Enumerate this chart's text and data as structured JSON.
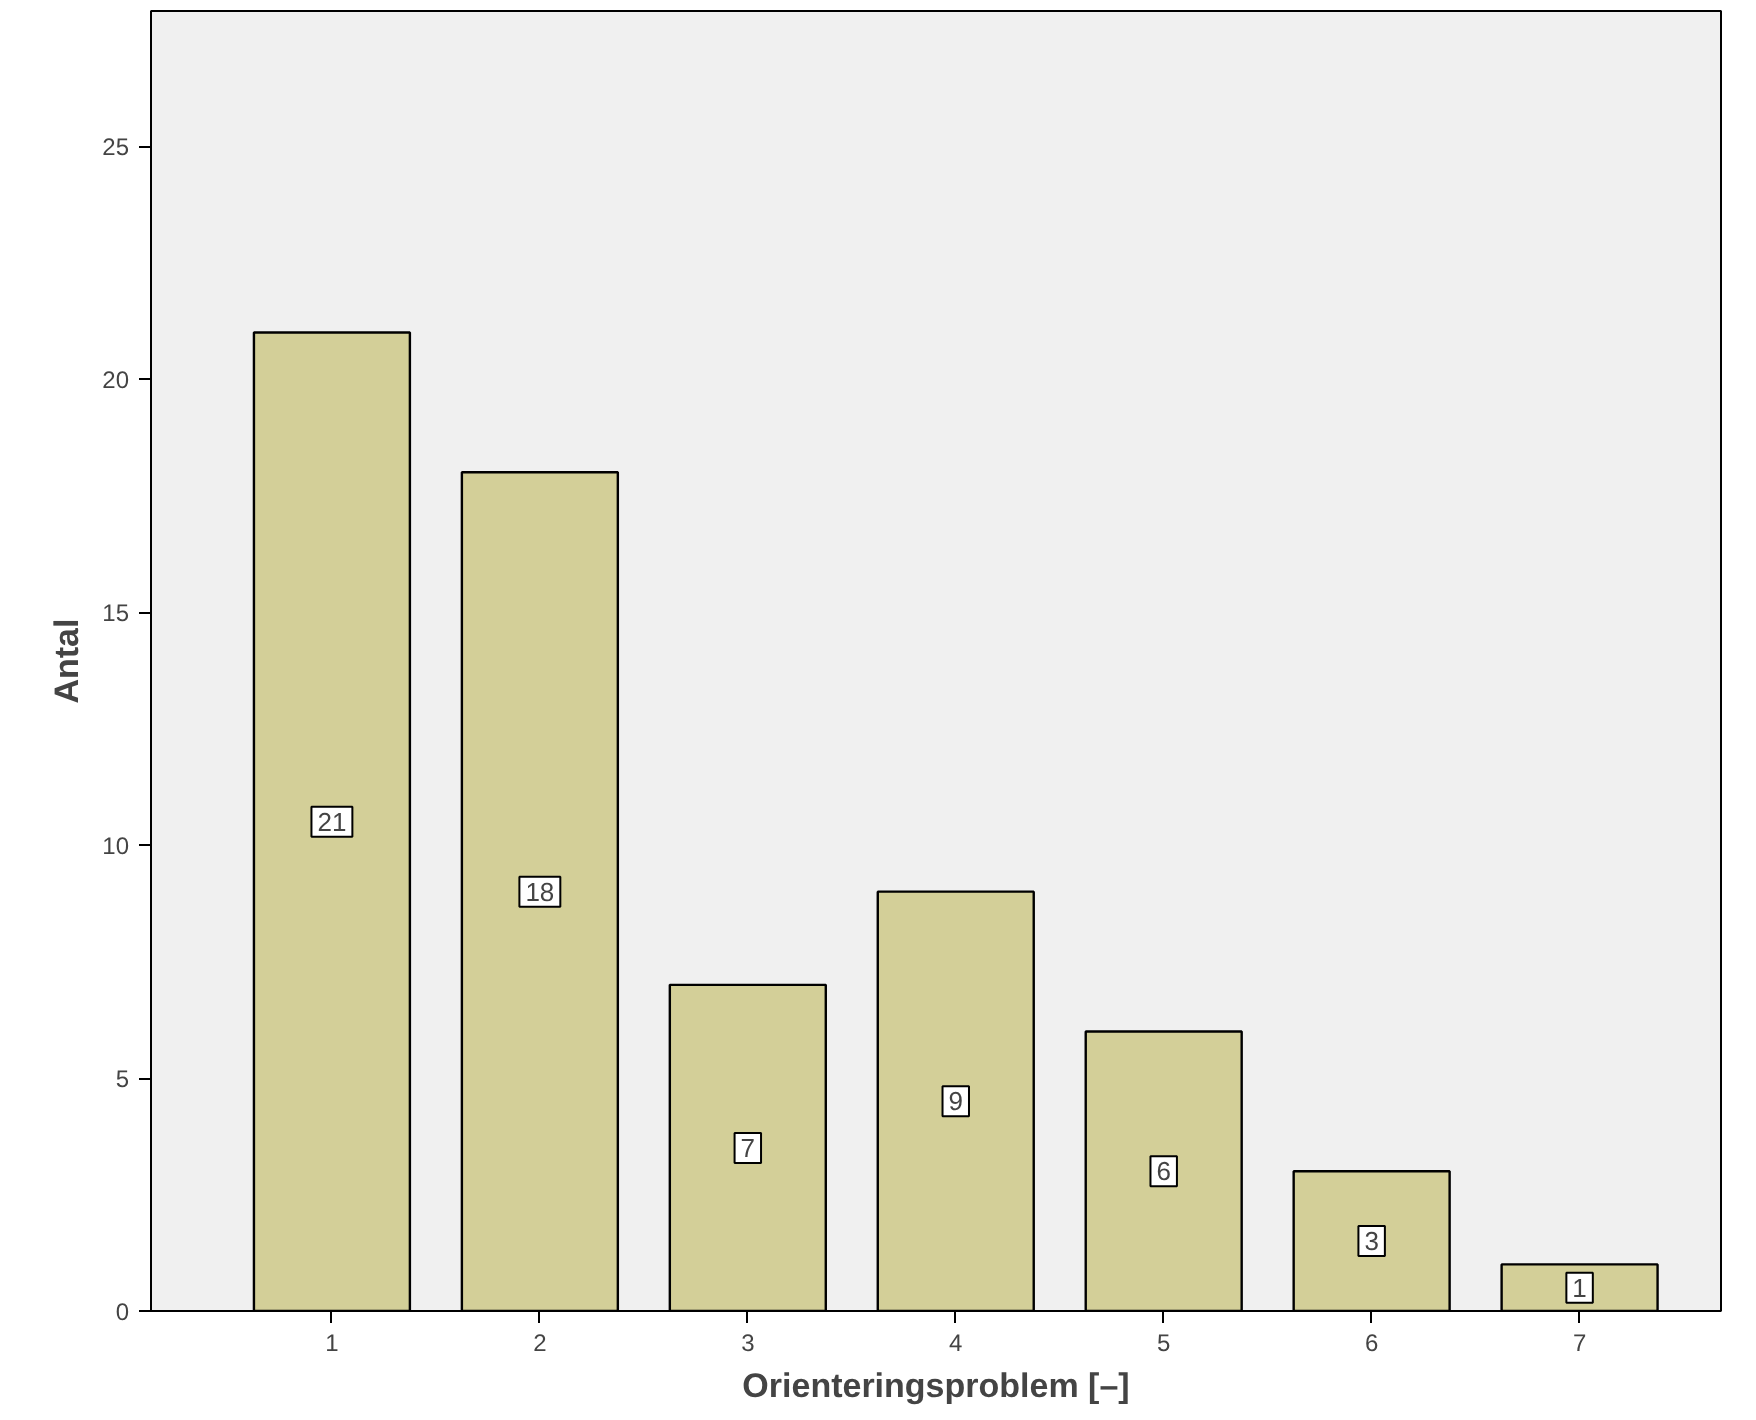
{
  "chart_data": {
    "type": "bar",
    "xlabel": "Orienteringsproblem [–]",
    "ylabel": "Antal",
    "categories": [
      "1",
      "2",
      "3",
      "4",
      "5",
      "6",
      "7"
    ],
    "values": [
      21,
      18,
      7,
      9,
      6,
      3,
      1
    ],
    "color": "#d3cf98",
    "ylim": [
      0,
      27.9
    ],
    "yticks": [
      0,
      5,
      10,
      15,
      20,
      25
    ],
    "grid": false,
    "data_labels": true
  }
}
